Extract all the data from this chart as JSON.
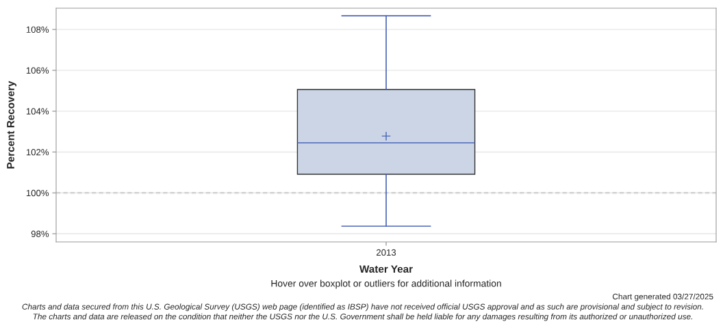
{
  "chart_data": {
    "type": "box",
    "xlabel": "Water Year",
    "ylabel": "Percent Recovery",
    "categories": [
      "2013"
    ],
    "boxes": [
      {
        "low": 98.37,
        "q1": 100.91,
        "median": 102.45,
        "q3": 105.06,
        "high": 108.67,
        "mean": 102.78
      }
    ],
    "color": "#cbd5e5",
    "ylim": [
      97.6,
      109.04
    ],
    "yticks": [
      {
        "value": 98,
        "label": "98%"
      },
      {
        "value": 100,
        "label": "100%"
      },
      {
        "value": 102,
        "label": "102%"
      },
      {
        "value": 104,
        "label": "104%"
      },
      {
        "value": 106,
        "label": "106%"
      },
      {
        "value": 108,
        "label": "108%"
      }
    ],
    "grid": "y",
    "ref_lines": [
      {
        "axis": "y",
        "value": 100,
        "color": "#808080",
        "line_style": "dashed"
      }
    ],
    "annotations": [
      "Hover over boxplot or outliers for additional information",
      "Chart generated 03/27/2025",
      "Charts and data secured from this U.S. Geological Survey (USGS) web page (identified as IBSP) have not received official USGS approval and as such are provisional and subject to revision.\nThe charts and data are released on the condition that neither the USGS nor the U.S. Government shall be held liable for any damages resulting from its authorized or unauthorized use."
    ]
  }
}
